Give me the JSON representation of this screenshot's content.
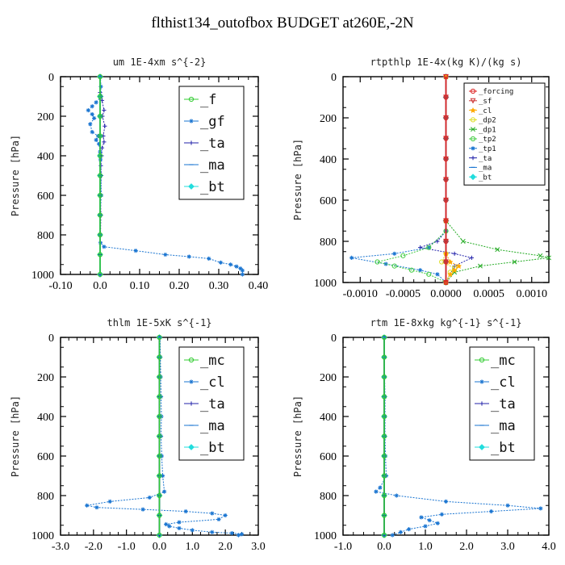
{
  "figure_title": "flthist134_outofbox  BUDGET at260E,-2N",
  "chart_data": [
    {
      "type": "line",
      "title": "um   1E-4xm s^{-2}",
      "xlabel": "",
      "ylabel": "Pressure [hPa]",
      "xlim": [
        -0.1,
        0.4
      ],
      "ylim": [
        1000,
        0
      ],
      "xticks": [
        -0.1,
        0.0,
        0.1,
        0.2,
        0.3,
        0.4
      ],
      "xtick_labels": [
        "-0.10",
        "0.0",
        "0.10",
        "0.20",
        "0.30",
        "0.40"
      ],
      "yticks": [
        0,
        200,
        400,
        600,
        800,
        1000
      ],
      "ytick_labels": [
        "0",
        "200",
        "400",
        "600",
        "800",
        "1000"
      ],
      "legend_position": "top-right",
      "legend_font_size": "large",
      "series": [
        {
          "name": "_f",
          "color": "#33cc33",
          "marker": "circle",
          "x": [
            0.0,
            0.0,
            0.0,
            0.0,
            0.0,
            0.0,
            0.0,
            0.0,
            0.0,
            0.0,
            0.0
          ],
          "y": [
            0,
            100,
            200,
            300,
            400,
            500,
            600,
            700,
            800,
            900,
            1000
          ]
        },
        {
          "name": "_gf",
          "color": "#1a75d1",
          "marker": "asterisk",
          "x": [
            0.001,
            0.002,
            0.003,
            -0.01,
            -0.02,
            -0.03,
            -0.02,
            -0.015,
            -0.025,
            -0.02,
            -0.005,
            -0.01,
            -0.003,
            0.0,
            0.001,
            0.002,
            0.003,
            0.0,
            0.0,
            0.001,
            0.01,
            0.09,
            0.165,
            0.225,
            0.275,
            0.305,
            0.33,
            0.345,
            0.355,
            0.36,
            0.36
          ],
          "y": [
            0,
            50,
            100,
            130,
            150,
            170,
            190,
            210,
            240,
            280,
            300,
            320,
            340,
            380,
            420,
            500,
            600,
            700,
            800,
            840,
            860,
            880,
            900,
            910,
            920,
            940,
            950,
            960,
            970,
            980,
            1000
          ]
        },
        {
          "name": "_ta",
          "color": "#2222aa",
          "marker": "plus",
          "x": [
            0.001,
            0.0,
            0.005,
            0.01,
            0.006,
            0.012,
            0.008,
            0.01,
            0.005,
            0.004,
            0.002,
            0.003,
            0.001,
            0.002,
            0.001,
            0.0,
            0.0
          ],
          "y": [
            0,
            80,
            120,
            170,
            200,
            250,
            300,
            330,
            360,
            400,
            450,
            500,
            600,
            700,
            800,
            900,
            1000
          ]
        },
        {
          "name": "_ma",
          "color": "#1a75d1",
          "marker": "dash",
          "x": [
            0.0,
            0.0,
            0.0,
            0.0,
            0.0,
            0.0,
            0.0,
            0.0,
            0.0,
            0.0,
            0.0
          ],
          "y": [
            0,
            100,
            200,
            300,
            400,
            500,
            600,
            700,
            800,
            900,
            1000
          ]
        },
        {
          "name": "_bt",
          "color": "#22dddd",
          "marker": "diamond",
          "x": [
            0.0,
            0.0,
            0.0,
            0.0,
            0.0,
            0.0,
            0.0,
            0.0,
            0.0,
            0.0,
            0.0
          ],
          "y": [
            0,
            100,
            200,
            300,
            400,
            500,
            600,
            700,
            800,
            900,
            1000
          ]
        }
      ]
    },
    {
      "type": "line",
      "title": "rtpthlp   1E-4x(kg K)/(kg s)",
      "xlabel": "",
      "ylabel": "Pressure [hPa]",
      "xlim": [
        -0.0012,
        0.0012
      ],
      "ylim": [
        1000,
        0
      ],
      "xticks": [
        -0.001,
        -0.0005,
        0.0,
        0.0005,
        0.001
      ],
      "xtick_labels": [
        "-0.0010",
        "-0.0005",
        "0.0000",
        "0.0005",
        "0.0010"
      ],
      "yticks": [
        0,
        200,
        400,
        600,
        800,
        1000
      ],
      "ytick_labels": [
        "0",
        "200",
        "400",
        "600",
        "800",
        "1000"
      ],
      "legend_position": "top-center",
      "legend_font_size": "small",
      "series": [
        {
          "name": "_forcing",
          "color": "#dd2222",
          "marker": "circle",
          "x": [
            0,
            0,
            0,
            0,
            0,
            0,
            0,
            0,
            0,
            0,
            0
          ],
          "y": [
            0,
            100,
            200,
            300,
            400,
            500,
            600,
            700,
            800,
            900,
            1000
          ]
        },
        {
          "name": "_sf",
          "color": "#cc3333",
          "marker": "triangle-down",
          "x": [
            0,
            0,
            0,
            0,
            0,
            0,
            0,
            0,
            0,
            0,
            0
          ],
          "y": [
            0,
            100,
            200,
            300,
            400,
            500,
            600,
            700,
            800,
            900,
            1000
          ]
        },
        {
          "name": "_cl",
          "color": "#ffaa00",
          "marker": "star",
          "x": [
            0,
            0,
            0,
            5e-05,
            0.00015,
            0.0001,
            5e-05,
            0
          ],
          "y": [
            0,
            700,
            860,
            900,
            920,
            940,
            960,
            1000
          ]
        },
        {
          "name": "_dp2",
          "color": "#dddd22",
          "marker": "circle",
          "x": [
            0,
            0,
            0,
            -5e-05,
            0.0001,
            5e-05,
            0
          ],
          "y": [
            0,
            700,
            860,
            900,
            930,
            950,
            1000
          ]
        },
        {
          "name": "_dp1",
          "color": "#22aa22",
          "marker": "cross",
          "x": [
            0,
            0,
            0.0002,
            0.0006,
            0.0011,
            0.0012,
            0.0008,
            0.0004,
            0.0001,
            0
          ],
          "y": [
            0,
            700,
            800,
            840,
            870,
            880,
            900,
            920,
            950,
            1000
          ]
        },
        {
          "name": "_tp2",
          "color": "#44cc44",
          "marker": "circle",
          "x": [
            0,
            0,
            -0.0002,
            -0.0005,
            -0.0008,
            -0.0006,
            -0.0004,
            -0.0002,
            0
          ],
          "y": [
            0,
            750,
            830,
            870,
            900,
            920,
            940,
            960,
            1000
          ]
        },
        {
          "name": "_tp1",
          "color": "#1a75d1",
          "marker": "asterisk",
          "x": [
            0,
            0,
            -0.0002,
            -0.0006,
            -0.0011,
            -0.0007,
            -0.0003,
            -0.0001,
            0
          ],
          "y": [
            0,
            750,
            830,
            860,
            880,
            910,
            940,
            960,
            1000
          ]
        },
        {
          "name": "_ta",
          "color": "#2222aa",
          "marker": "plus",
          "x": [
            0,
            0,
            -0.0001,
            -0.0003,
            0.0001,
            0.0003,
            0.0001,
            0
          ],
          "y": [
            0,
            750,
            800,
            830,
            860,
            880,
            920,
            1000
          ]
        },
        {
          "name": "_ma",
          "color": "#1a75d1",
          "marker": "dash",
          "x": [
            0,
            0,
            0,
            0,
            0,
            0,
            0,
            0,
            0,
            0,
            0
          ],
          "y": [
            0,
            100,
            200,
            300,
            400,
            500,
            600,
            700,
            800,
            900,
            1000
          ]
        },
        {
          "name": "_bt",
          "color": "#22dddd",
          "marker": "diamond",
          "x": [
            0,
            0,
            0,
            0,
            0,
            0,
            0,
            0,
            0,
            0,
            0
          ],
          "y": [
            0,
            100,
            200,
            300,
            400,
            500,
            600,
            700,
            800,
            900,
            1000
          ]
        }
      ]
    },
    {
      "type": "line",
      "title": "thlm   1E-5xK s^{-1}",
      "xlabel": "",
      "ylabel": "Pressure [hPa]",
      "xlim": [
        -3.0,
        3.0
      ],
      "ylim": [
        1000,
        0
      ],
      "xticks": [
        -3.0,
        -2.0,
        -1.0,
        0.0,
        1.0,
        2.0,
        3.0
      ],
      "xtick_labels": [
        "-3.0",
        "-2.0",
        "-1.0",
        "0.0",
        "1.0",
        "2.0",
        "3.0"
      ],
      "yticks": [
        0,
        200,
        400,
        600,
        800,
        1000
      ],
      "ytick_labels": [
        "0",
        "200",
        "400",
        "600",
        "800",
        "1000"
      ],
      "legend_position": "top-right",
      "legend_font_size": "large",
      "series": [
        {
          "name": "_mc",
          "color": "#33cc33",
          "marker": "circle",
          "x": [
            0,
            0,
            0,
            0,
            0,
            0,
            0,
            0,
            0,
            0,
            0
          ],
          "y": [
            0,
            100,
            200,
            300,
            400,
            500,
            600,
            700,
            800,
            900,
            1000
          ]
        },
        {
          "name": "_cl",
          "color": "#1a75d1",
          "marker": "asterisk",
          "x": [
            0.02,
            0.03,
            0.04,
            0.05,
            0.06,
            0.05,
            0.07,
            0.1,
            0.15,
            -0.3,
            -1.5,
            -2.2,
            -1.9,
            -0.5,
            0.8,
            1.6,
            2.0,
            1.8,
            0.6,
            0.2,
            0.3,
            0.6,
            1.0,
            1.6,
            2.2,
            2.5,
            2.4
          ],
          "y": [
            0,
            100,
            200,
            300,
            400,
            500,
            600,
            700,
            780,
            810,
            830,
            850,
            860,
            870,
            880,
            890,
            900,
            920,
            935,
            945,
            955,
            965,
            975,
            985,
            990,
            995,
            1000
          ]
        },
        {
          "name": "_ta",
          "color": "#2222aa",
          "marker": "plus",
          "x": [
            0,
            0,
            0,
            0,
            0,
            0,
            0,
            0,
            0,
            0,
            0
          ],
          "y": [
            0,
            100,
            200,
            300,
            400,
            500,
            600,
            700,
            800,
            900,
            1000
          ]
        },
        {
          "name": "_ma",
          "color": "#1a75d1",
          "marker": "dash",
          "x": [
            0,
            0,
            0,
            0,
            0,
            0,
            0,
            0,
            0,
            0,
            0
          ],
          "y": [
            0,
            100,
            200,
            300,
            400,
            500,
            600,
            700,
            800,
            900,
            1000
          ]
        },
        {
          "name": "_bt",
          "color": "#22dddd",
          "marker": "diamond",
          "x": [
            0,
            0,
            0,
            0,
            0,
            0,
            0,
            0,
            0,
            0,
            0
          ],
          "y": [
            0,
            100,
            200,
            300,
            400,
            500,
            600,
            700,
            800,
            900,
            1000
          ]
        }
      ]
    },
    {
      "type": "line",
      "title": "rtm   1E-8xkg kg^{-1} s^{-1}",
      "xlabel": "",
      "ylabel": "Pressure [hPa]",
      "xlim": [
        -1.0,
        4.0
      ],
      "ylim": [
        1000,
        0
      ],
      "xticks": [
        -1.0,
        0.0,
        1.0,
        2.0,
        3.0,
        4.0
      ],
      "xtick_labels": [
        "-1.0",
        "0.0",
        "1.0",
        "2.0",
        "3.0",
        "4.0"
      ],
      "yticks": [
        0,
        200,
        400,
        600,
        800,
        1000
      ],
      "ytick_labels": [
        "0",
        "200",
        "400",
        "600",
        "800",
        "1000"
      ],
      "legend_position": "top-right",
      "legend_font_size": "large",
      "series": [
        {
          "name": "_mc",
          "color": "#33cc33",
          "marker": "circle",
          "x": [
            0,
            0,
            0,
            0,
            0,
            0,
            0,
            0,
            0,
            0,
            0
          ],
          "y": [
            0,
            100,
            200,
            300,
            400,
            500,
            600,
            700,
            800,
            900,
            1000
          ]
        },
        {
          "name": "_cl",
          "color": "#1a75d1",
          "marker": "asterisk",
          "x": [
            0.01,
            0.01,
            0.01,
            0.02,
            0.02,
            0.02,
            0.03,
            0.05,
            -0.1,
            -0.2,
            0.3,
            1.5,
            3.0,
            3.8,
            2.6,
            1.4,
            0.9,
            1.1,
            1.3,
            1.0,
            0.6,
            0.4,
            0.2
          ],
          "y": [
            0,
            100,
            200,
            300,
            400,
            500,
            600,
            700,
            760,
            780,
            800,
            830,
            850,
            865,
            880,
            895,
            910,
            925,
            940,
            955,
            970,
            985,
            1000
          ]
        },
        {
          "name": "_ta",
          "color": "#2222aa",
          "marker": "plus",
          "x": [
            0,
            0,
            0,
            0,
            0,
            0,
            0,
            0,
            0,
            0,
            0
          ],
          "y": [
            0,
            100,
            200,
            300,
            400,
            500,
            600,
            700,
            800,
            900,
            1000
          ]
        },
        {
          "name": "_ma",
          "color": "#1a75d1",
          "marker": "dash",
          "x": [
            0,
            0,
            0,
            0,
            0,
            0,
            0,
            0,
            0,
            0,
            0
          ],
          "y": [
            0,
            100,
            200,
            300,
            400,
            500,
            600,
            700,
            800,
            900,
            1000
          ]
        },
        {
          "name": "_bt",
          "color": "#22dddd",
          "marker": "diamond",
          "x": [
            0,
            0,
            0,
            0,
            0,
            0,
            0,
            0,
            0,
            0,
            0
          ],
          "y": [
            0,
            100,
            200,
            300,
            400,
            500,
            600,
            700,
            800,
            900,
            1000
          ]
        }
      ]
    }
  ]
}
